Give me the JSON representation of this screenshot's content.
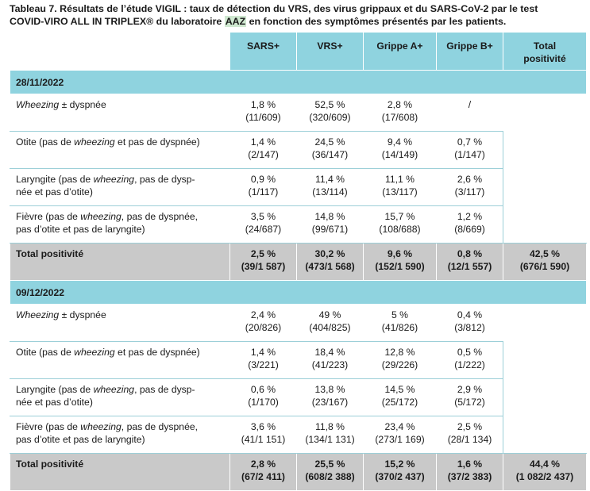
{
  "caption": {
    "line1": "Tableau 7. Résultats de l’étude VIGIL : taux de détection du VRS, des virus grippaux et du SARS-CoV-2 par le test",
    "line2_pre": "COVID-VIRO ALL IN TRIPLEX® du laboratoire ",
    "line2_highlight": "AAZ",
    "line2_post": " en fonction des symptômes présentés par les patients."
  },
  "headers": {
    "sars": "SARS+",
    "vrs": "VRS+",
    "grippe_a": "Grippe A+",
    "grippe_b": "Grippe B+",
    "total_l1": "Total",
    "total_l2": "positivité"
  },
  "sections": [
    {
      "date": "28/11/2022",
      "rows": [
        {
          "label_pre": "",
          "label_em": "Wheezing",
          "label_post": " ± dyspnée",
          "label_l2": "",
          "sars": [
            "1,8 %",
            "(11/609)"
          ],
          "vrs": [
            "52,5 %",
            "(320/609)"
          ],
          "ga": [
            "2,8 %",
            "(17/608)"
          ],
          "gb": [
            "/",
            ""
          ]
        },
        {
          "label_pre": "Otite (pas de ",
          "label_em": "wheezing",
          "label_post": " et pas de dyspnée)",
          "label_l2": "",
          "sars": [
            "1,4 %",
            "(2/147)"
          ],
          "vrs": [
            "24,5 %",
            "(36/147)"
          ],
          "ga": [
            "9,4 %",
            "(14/149)"
          ],
          "gb": [
            "0,7 %",
            "(1/147)"
          ]
        },
        {
          "label_pre": "Laryngite (pas de ",
          "label_em": "wheezing",
          "label_post": ", pas de dysp-",
          "label_l2": "née et pas d’otite)",
          "sars": [
            "0,9 %",
            "(1/117)"
          ],
          "vrs": [
            "11,4 %",
            "(13/114)"
          ],
          "ga": [
            "11,1 %",
            "(13/117)"
          ],
          "gb": [
            "2,6 %",
            "(3/117)"
          ]
        },
        {
          "label_pre": "Fièvre (pas de ",
          "label_em": "wheezing",
          "label_post": ", pas de dyspnée,",
          "label_l2": "pas d’otite et pas de laryngite)",
          "sars": [
            "3,5 %",
            "(24/687)"
          ],
          "vrs": [
            "14,8 %",
            "(99/671)"
          ],
          "ga": [
            "15,7 %",
            "(108/688)"
          ],
          "gb": [
            "1,2 %",
            "(8/669)"
          ]
        }
      ],
      "total": {
        "label": "Total positivité",
        "sars": [
          "2,5 %",
          "(39/1 587)"
        ],
        "vrs": [
          "30,2 %",
          "(473/1 568)"
        ],
        "ga": [
          "9,6 %",
          "(152/1 590)"
        ],
        "gb": [
          "0,8 %",
          "(12/1 557)"
        ],
        "all": [
          "42,5 %",
          "(676/1 590)"
        ]
      }
    },
    {
      "date": "09/12/2022",
      "rows": [
        {
          "label_pre": "",
          "label_em": "Wheezing",
          "label_post": " ± dyspnée",
          "label_l2": "",
          "sars": [
            "2,4 %",
            "(20/826)"
          ],
          "vrs": [
            "49 %",
            "(404/825)"
          ],
          "ga": [
            "5 %",
            "(41/826)"
          ],
          "gb": [
            "0,4 %",
            "(3/812)"
          ]
        },
        {
          "label_pre": "Otite (pas de ",
          "label_em": "wheezing",
          "label_post": " et pas de dyspnée)",
          "label_l2": "",
          "sars": [
            "1,4 %",
            "(3/221)"
          ],
          "vrs": [
            "18,4 %",
            "(41/223)"
          ],
          "ga": [
            "12,8 %",
            "(29/226)"
          ],
          "gb": [
            "0,5 %",
            "(1/222)"
          ]
        },
        {
          "label_pre": "Laryngite (pas de ",
          "label_em": "wheezing",
          "label_post": ", pas de dysp-",
          "label_l2": "née et pas d’otite)",
          "sars": [
            "0,6 %",
            "(1/170)"
          ],
          "vrs": [
            "13,8 %",
            "(23/167)"
          ],
          "ga": [
            "14,5 %",
            "(25/172)"
          ],
          "gb": [
            "2,9 %",
            "(5/172)"
          ]
        },
        {
          "label_pre": "Fièvre (pas de ",
          "label_em": "wheezing",
          "label_post": ", pas de dyspnée,",
          "label_l2": "pas d’otite et pas de laryngite)",
          "sars": [
            "3,6 %",
            "(41/1 151)"
          ],
          "vrs": [
            "11,8 %",
            "(134/1 131)"
          ],
          "ga": [
            "23,4 %",
            "(273/1 169)"
          ],
          "gb": [
            "2,5 %",
            "(28/1 134)"
          ]
        }
      ],
      "total": {
        "label": "Total positivité",
        "sars": [
          "2,8 %",
          "(67/2 411)"
        ],
        "vrs": [
          "25,5 %",
          "(608/2 388)"
        ],
        "ga": [
          "15,2 %",
          "(370/2 437)"
        ],
        "gb": [
          "1,6 %",
          "(37/2 383)"
        ],
        "all": [
          "44,4 %",
          "(1 082/2 437)"
        ]
      }
    }
  ]
}
